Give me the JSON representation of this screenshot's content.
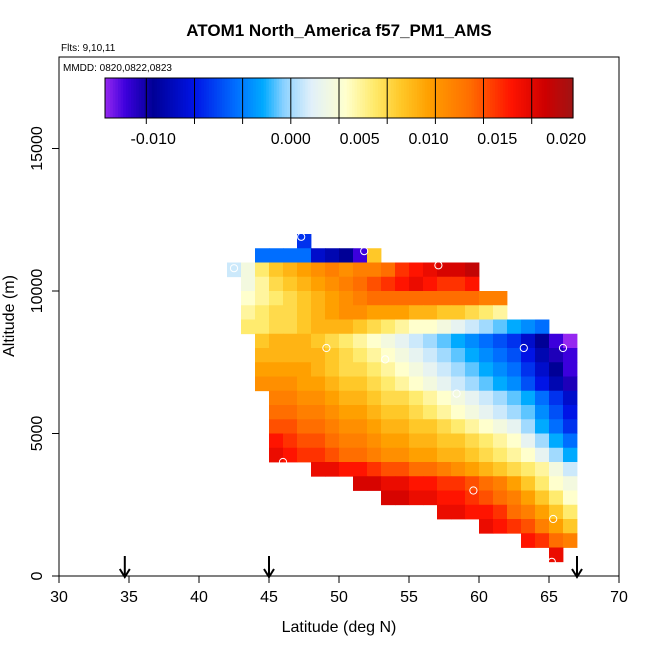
{
  "chart_data": {
    "type": "heatmap",
    "title": "ATOM1 North_America f57_PM1_AMS",
    "subtitle_flights": "Flts: 9,10,11",
    "subtitle_dates": "MMDD: 0820,0822,0823",
    "xlabel": "Latitude (deg N)",
    "ylabel": "Altitude (m)",
    "xlim": [
      30,
      70
    ],
    "ylim": [
      0,
      18000
    ],
    "x_ticks": [
      30,
      35,
      40,
      45,
      50,
      55,
      60,
      65,
      70
    ],
    "y_ticks": [
      0,
      5000,
      10000,
      15000
    ],
    "y_tick_labels": [
      "0",
      "5000",
      "10000",
      "15000"
    ],
    "colorbar": {
      "min": -0.0135,
      "max": 0.0205,
      "ticks": [
        -0.01,
        0,
        0.005,
        0.01,
        0.015,
        0.02
      ],
      "tick_labels": [
        "-0.010",
        "0.000",
        "0.005",
        "0.010",
        "0.015",
        "0.020"
      ]
    },
    "cell_size": {
      "lat": 1,
      "alt": 500
    },
    "rows": [
      {
        "alt_low": 11500,
        "lat_start": 47,
        "values": [
          -0.006
        ]
      },
      {
        "alt_low": 11000,
        "lat_start": 44,
        "values": [
          -0.004,
          -0.004,
          -0.004,
          -0.004,
          -0.008,
          -0.009,
          -0.01,
          -0.012,
          0.008
        ]
      },
      {
        "alt_low": 10500,
        "lat_start": 42,
        "values": [
          0.001,
          0.003,
          0.006,
          0.008,
          0.009,
          0.01,
          0.011,
          0.012,
          0.011,
          0.012,
          0.012,
          0.013,
          0.015,
          0.016,
          0.017,
          0.018,
          0.018,
          0.019
        ]
      },
      {
        "alt_low": 10000,
        "lat_start": 43,
        "values": [
          0.003,
          0.005,
          0.007,
          0.008,
          0.009,
          0.01,
          0.011,
          0.012,
          0.013,
          0.014,
          0.015,
          0.016,
          0.017,
          0.016,
          0.015,
          0.015,
          0.016
        ]
      },
      {
        "alt_low": 9500,
        "lat_start": 43,
        "values": [
          0.004,
          0.005,
          0.006,
          0.007,
          0.008,
          0.009,
          0.01,
          0.011,
          0.012,
          0.013,
          0.013,
          0.013,
          0.013,
          0.013,
          0.013,
          0.013,
          0.013,
          0.012,
          0.012
        ]
      },
      {
        "alt_low": 9000,
        "lat_start": 43,
        "values": [
          0.005,
          0.006,
          0.007,
          0.007,
          0.008,
          0.009,
          0.01,
          0.011,
          0.011,
          0.01,
          0.01,
          0.01,
          0.009,
          0.009,
          0.008,
          0.008,
          0.007,
          0.006,
          0.005
        ]
      },
      {
        "alt_low": 8500,
        "lat_start": 43,
        "values": [
          0.006,
          0.006,
          0.007,
          0.007,
          0.008,
          0.009,
          0.009,
          0.009,
          0.008,
          0.007,
          0.006,
          0.005,
          0.004,
          0.004,
          0.003,
          0.002,
          0.001,
          0.0,
          -0.001,
          -0.002,
          -0.003,
          -0.004
        ]
      },
      {
        "alt_low": 8000,
        "lat_start": 44,
        "values": [
          0.008,
          0.009,
          0.009,
          0.009,
          0.008,
          0.007,
          0.006,
          0.005,
          0.004,
          0.003,
          0.002,
          0.001,
          0.0,
          -0.001,
          -0.002,
          -0.003,
          -0.004,
          -0.005,
          -0.006,
          -0.008,
          -0.01,
          -0.012,
          -0.014
        ]
      },
      {
        "alt_low": 7500,
        "lat_start": 44,
        "values": [
          0.009,
          0.009,
          0.009,
          0.009,
          0.009,
          0.008,
          0.007,
          0.006,
          0.005,
          0.004,
          0.003,
          0.002,
          0.001,
          0.0,
          -0.001,
          -0.002,
          -0.003,
          -0.004,
          -0.005,
          -0.007,
          -0.009,
          -0.011,
          -0.012
        ]
      },
      {
        "alt_low": 7000,
        "lat_start": 44,
        "values": [
          0.01,
          0.01,
          0.01,
          0.01,
          0.009,
          0.008,
          0.007,
          0.007,
          0.006,
          0.005,
          0.004,
          0.003,
          0.002,
          0.001,
          0.0,
          -0.001,
          -0.002,
          -0.003,
          -0.004,
          -0.006,
          -0.008,
          -0.01,
          -0.012
        ]
      },
      {
        "alt_low": 6500,
        "lat_start": 44,
        "values": [
          0.011,
          0.011,
          0.011,
          0.01,
          0.01,
          0.009,
          0.008,
          0.008,
          0.007,
          0.006,
          0.005,
          0.004,
          0.003,
          0.002,
          0.001,
          0.0,
          -0.001,
          -0.002,
          -0.003,
          -0.005,
          -0.007,
          -0.009,
          -0.011
        ]
      },
      {
        "alt_low": 6000,
        "lat_start": 45,
        "values": [
          0.012,
          0.012,
          0.011,
          0.011,
          0.01,
          0.009,
          0.009,
          0.008,
          0.007,
          0.007,
          0.006,
          0.005,
          0.004,
          0.003,
          0.002,
          0.001,
          0.0,
          -0.001,
          -0.002,
          -0.004,
          -0.006,
          -0.008
        ]
      },
      {
        "alt_low": 5500,
        "lat_start": 45,
        "values": [
          0.013,
          0.013,
          0.012,
          0.012,
          0.011,
          0.01,
          0.01,
          0.009,
          0.008,
          0.008,
          0.007,
          0.006,
          0.005,
          0.004,
          0.003,
          0.002,
          0.001,
          0.0,
          -0.001,
          -0.003,
          -0.005,
          -0.007
        ]
      },
      {
        "alt_low": 5000,
        "lat_start": 45,
        "values": [
          0.014,
          0.014,
          0.013,
          0.013,
          0.012,
          0.011,
          0.011,
          0.01,
          0.009,
          0.009,
          0.008,
          0.008,
          0.007,
          0.006,
          0.005,
          0.004,
          0.003,
          0.002,
          0.0,
          -0.002,
          -0.004,
          -0.006
        ]
      },
      {
        "alt_low": 4500,
        "lat_start": 45,
        "values": [
          0.016,
          0.015,
          0.014,
          0.014,
          0.013,
          0.012,
          0.012,
          0.011,
          0.01,
          0.01,
          0.009,
          0.009,
          0.008,
          0.008,
          0.007,
          0.006,
          0.005,
          0.004,
          0.002,
          0.0,
          -0.002,
          -0.004
        ]
      },
      {
        "alt_low": 4000,
        "lat_start": 45,
        "values": [
          0.017,
          0.016,
          0.015,
          0.015,
          0.014,
          0.013,
          0.013,
          0.012,
          0.011,
          0.011,
          0.01,
          0.01,
          0.009,
          0.009,
          0.008,
          0.007,
          0.006,
          0.005,
          0.004,
          0.002,
          0.0,
          -0.002
        ]
      },
      {
        "alt_low": 3500,
        "lat_start": 48,
        "values": [
          0.017,
          0.017,
          0.016,
          0.016,
          0.015,
          0.014,
          0.014,
          0.013,
          0.013,
          0.012,
          0.011,
          0.01,
          0.009,
          0.008,
          0.007,
          0.006,
          0.005,
          0.003,
          0.001
        ]
      },
      {
        "alt_low": 3000,
        "lat_start": 51,
        "values": [
          0.018,
          0.018,
          0.017,
          0.017,
          0.016,
          0.016,
          0.015,
          0.015,
          0.014,
          0.013,
          0.012,
          0.01,
          0.008,
          0.006,
          0.004,
          0.003
        ]
      },
      {
        "alt_low": 2500,
        "lat_start": 53,
        "values": [
          0.018,
          0.018,
          0.017,
          0.017,
          0.016,
          0.016,
          0.015,
          0.014,
          0.013,
          0.012,
          0.01,
          0.008,
          0.006,
          0.004
        ]
      },
      {
        "alt_low": 2000,
        "lat_start": 57,
        "values": [
          0.017,
          0.017,
          0.016,
          0.016,
          0.015,
          0.013,
          0.012,
          0.01,
          0.008,
          0.006
        ]
      },
      {
        "alt_low": 1500,
        "lat_start": 60,
        "values": [
          0.017,
          0.016,
          0.015,
          0.014,
          0.012,
          0.01,
          0.008
        ]
      },
      {
        "alt_low": 1000,
        "lat_start": 63,
        "values": [
          0.016,
          0.015,
          0.013,
          0.012
        ]
      },
      {
        "alt_low": 500,
        "lat_start": 65,
        "values": [
          0.017
        ]
      }
    ],
    "sample_points": [
      {
        "lat": 42.5,
        "alt": 10800
      },
      {
        "lat": 47.3,
        "alt": 11900
      },
      {
        "lat": 51.8,
        "alt": 11400
      },
      {
        "lat": 57.1,
        "alt": 10900
      },
      {
        "lat": 49.1,
        "alt": 8000
      },
      {
        "lat": 53.3,
        "alt": 7600
      },
      {
        "lat": 58.4,
        "alt": 6400
      },
      {
        "lat": 63.2,
        "alt": 8000
      },
      {
        "lat": 66.0,
        "alt": 8000
      },
      {
        "lat": 46.0,
        "alt": 4000
      },
      {
        "lat": 59.6,
        "alt": 3000
      },
      {
        "lat": 65.3,
        "alt": 2000
      },
      {
        "lat": 65.2,
        "alt": 500
      }
    ],
    "arrows_lat": [
      34.7,
      45.0,
      67.0
    ],
    "grid": false
  }
}
